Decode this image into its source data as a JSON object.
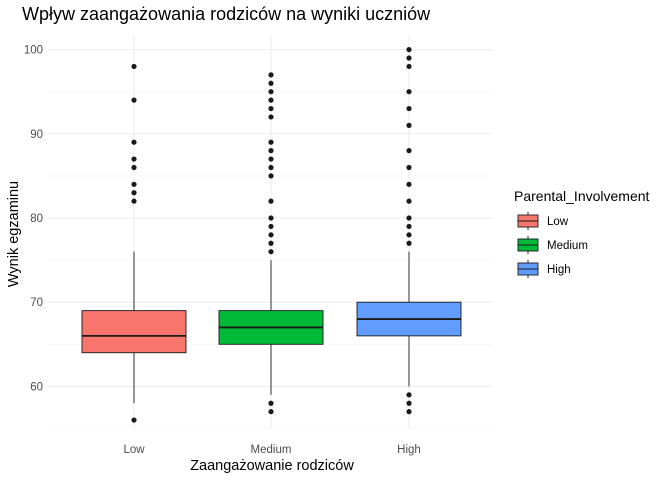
{
  "chart_data": {
    "type": "boxplot",
    "title": "Wpływ zaangażowania rodziców na wyniki uczniów",
    "xlabel": "Zaangażowanie rodziców",
    "ylabel": "Wynik egzaminu",
    "ylim": [
      55,
      101
    ],
    "yticks": [
      60,
      70,
      80,
      90,
      100
    ],
    "grid": true,
    "legend": {
      "title": "Parental_Involvement",
      "position": "right",
      "entries": [
        "Low",
        "Medium",
        "High"
      ]
    },
    "categories": [
      "Low",
      "Medium",
      "High"
    ],
    "series": [
      {
        "name": "Low",
        "color": "#F8766D",
        "whisker_low": 58,
        "q1": 64,
        "median": 66,
        "q3": 69,
        "whisker_high": 76,
        "outliers": [
          56,
          82,
          83,
          84,
          86,
          87,
          89,
          94,
          98
        ]
      },
      {
        "name": "Medium",
        "color": "#00BA38",
        "whisker_low": 59,
        "q1": 65,
        "median": 67,
        "q3": 69,
        "whisker_high": 75,
        "outliers": [
          57,
          58,
          76,
          77,
          78,
          79,
          80,
          82,
          85,
          86,
          87,
          88,
          89,
          92,
          93,
          94,
          95,
          96,
          97
        ]
      },
      {
        "name": "High",
        "color": "#619CFF",
        "whisker_low": 60,
        "q1": 66,
        "median": 68,
        "q3": 70,
        "whisker_high": 76,
        "outliers": [
          57,
          58,
          59,
          77,
          78,
          79,
          80,
          82,
          84,
          86,
          88,
          91,
          93,
          95,
          98,
          99,
          100
        ]
      }
    ]
  }
}
